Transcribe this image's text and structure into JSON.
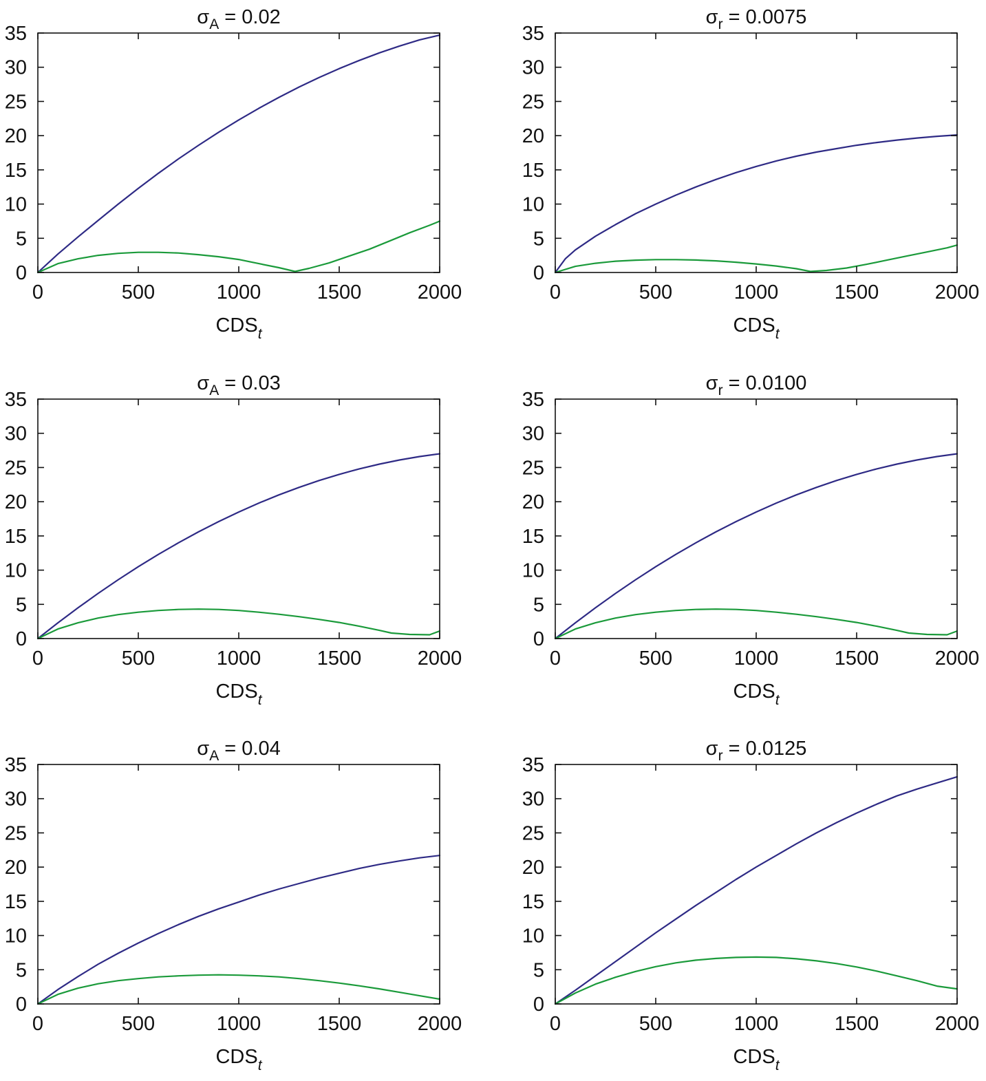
{
  "figure": {
    "panels": [
      {
        "title": {
          "symbol": "σ",
          "subscript": "A",
          "rest": " = 0.02"
        }
      },
      {
        "title": {
          "symbol": "σ",
          "subscript": "r",
          "rest": " = 0.0075"
        }
      },
      {
        "title": {
          "symbol": "σ",
          "subscript": "A",
          "rest": " = 0.03"
        }
      },
      {
        "title": {
          "symbol": "σ",
          "subscript": "r",
          "rest": " = 0.0100"
        }
      },
      {
        "title": {
          "symbol": "σ",
          "subscript": "A",
          "rest": " = 0.04"
        }
      },
      {
        "title": {
          "symbol": "σ",
          "subscript": "r",
          "rest": " = 0.0125"
        }
      }
    ],
    "xlabel": {
      "main": "CDS",
      "subscript": "t"
    }
  },
  "chart_data": [
    {
      "type": "line",
      "title": "σA = 0.02",
      "xlabel": "CDSt",
      "ylabel": "",
      "xlim": [
        0,
        2000
      ],
      "ylim": [
        0,
        35
      ],
      "xticks": [
        0,
        500,
        1000,
        1500,
        2000
      ],
      "yticks": [
        0,
        5,
        10,
        15,
        20,
        25,
        30,
        35
      ],
      "series": [
        {
          "name": "blue",
          "color": "#2e2a85",
          "x": [
            0,
            100,
            200,
            300,
            400,
            500,
            600,
            700,
            800,
            900,
            1000,
            1100,
            1200,
            1300,
            1400,
            1500,
            1600,
            1700,
            1800,
            1900,
            2000
          ],
          "y": [
            0,
            2.7,
            5.2,
            7.6,
            10.0,
            12.3,
            14.5,
            16.6,
            18.6,
            20.5,
            22.3,
            24.0,
            25.6,
            27.1,
            28.5,
            29.8,
            31.0,
            32.1,
            33.1,
            34.0,
            34.7
          ]
        },
        {
          "name": "green",
          "color": "#1a9a3a",
          "x": [
            0,
            100,
            200,
            300,
            400,
            500,
            600,
            700,
            800,
            900,
            1000,
            1100,
            1200,
            1280,
            1350,
            1450,
            1550,
            1650,
            1750,
            1850,
            1950,
            2000
          ],
          "y": [
            0,
            1.3,
            2.0,
            2.5,
            2.8,
            2.95,
            2.95,
            2.85,
            2.6,
            2.3,
            1.9,
            1.3,
            0.7,
            0.15,
            0.6,
            1.4,
            2.4,
            3.4,
            4.6,
            5.8,
            6.9,
            7.5
          ]
        }
      ]
    },
    {
      "type": "line",
      "title": "σr = 0.0075",
      "xlabel": "CDSt",
      "ylabel": "",
      "xlim": [
        0,
        2000
      ],
      "ylim": [
        0,
        35
      ],
      "xticks": [
        0,
        500,
        1000,
        1500,
        2000
      ],
      "yticks": [
        0,
        5,
        10,
        15,
        20,
        25,
        30,
        35
      ],
      "series": [
        {
          "name": "blue",
          "color": "#2e2a85",
          "x": [
            0,
            50,
            100,
            200,
            300,
            400,
            500,
            600,
            700,
            800,
            900,
            1000,
            1100,
            1200,
            1300,
            1400,
            1500,
            1600,
            1700,
            1800,
            1900,
            2000
          ],
          "y": [
            0,
            2.0,
            3.3,
            5.3,
            7.0,
            8.6,
            10.0,
            11.3,
            12.5,
            13.6,
            14.6,
            15.5,
            16.3,
            17.0,
            17.6,
            18.1,
            18.6,
            19.0,
            19.35,
            19.65,
            19.9,
            20.1
          ]
        },
        {
          "name": "green",
          "color": "#1a9a3a",
          "x": [
            0,
            100,
            200,
            300,
            400,
            500,
            600,
            700,
            800,
            900,
            1000,
            1100,
            1200,
            1270,
            1350,
            1450,
            1550,
            1650,
            1750,
            1850,
            1950,
            2000
          ],
          "y": [
            0,
            0.9,
            1.35,
            1.65,
            1.8,
            1.88,
            1.88,
            1.82,
            1.7,
            1.5,
            1.25,
            0.95,
            0.55,
            0.15,
            0.3,
            0.65,
            1.2,
            1.8,
            2.4,
            3.0,
            3.6,
            4.0
          ]
        }
      ]
    },
    {
      "type": "line",
      "title": "σA = 0.03",
      "xlabel": "CDSt",
      "ylabel": "",
      "xlim": [
        0,
        2000
      ],
      "ylim": [
        0,
        35
      ],
      "xticks": [
        0,
        500,
        1000,
        1500,
        2000
      ],
      "yticks": [
        0,
        5,
        10,
        15,
        20,
        25,
        30,
        35
      ],
      "series": [
        {
          "name": "blue",
          "color": "#2e2a85",
          "x": [
            0,
            100,
            200,
            300,
            400,
            500,
            600,
            700,
            800,
            900,
            1000,
            1100,
            1200,
            1300,
            1400,
            1500,
            1600,
            1700,
            1800,
            1900,
            2000
          ],
          "y": [
            0,
            2.3,
            4.5,
            6.6,
            8.6,
            10.5,
            12.3,
            14.0,
            15.6,
            17.1,
            18.5,
            19.8,
            21.0,
            22.1,
            23.1,
            24.0,
            24.8,
            25.5,
            26.1,
            26.6,
            27.0
          ]
        },
        {
          "name": "green",
          "color": "#1a9a3a",
          "x": [
            0,
            100,
            200,
            300,
            400,
            500,
            600,
            700,
            800,
            900,
            1000,
            1100,
            1200,
            1300,
            1400,
            1500,
            1600,
            1700,
            1760,
            1850,
            1950,
            2000
          ],
          "y": [
            0,
            1.4,
            2.3,
            3.0,
            3.5,
            3.85,
            4.1,
            4.25,
            4.3,
            4.25,
            4.1,
            3.85,
            3.55,
            3.2,
            2.8,
            2.35,
            1.8,
            1.2,
            0.8,
            0.6,
            0.55,
            1.1
          ]
        }
      ]
    },
    {
      "type": "line",
      "title": "σr = 0.0100",
      "xlabel": "CDSt",
      "ylabel": "",
      "xlim": [
        0,
        2000
      ],
      "ylim": [
        0,
        35
      ],
      "xticks": [
        0,
        500,
        1000,
        1500,
        2000
      ],
      "yticks": [
        0,
        5,
        10,
        15,
        20,
        25,
        30,
        35
      ],
      "series": [
        {
          "name": "blue",
          "color": "#2e2a85",
          "x": [
            0,
            100,
            200,
            300,
            400,
            500,
            600,
            700,
            800,
            900,
            1000,
            1100,
            1200,
            1300,
            1400,
            1500,
            1600,
            1700,
            1800,
            1900,
            2000
          ],
          "y": [
            0,
            2.3,
            4.5,
            6.6,
            8.6,
            10.5,
            12.3,
            14.0,
            15.6,
            17.1,
            18.5,
            19.8,
            21.0,
            22.1,
            23.1,
            24.0,
            24.8,
            25.5,
            26.1,
            26.6,
            27.0
          ]
        },
        {
          "name": "green",
          "color": "#1a9a3a",
          "x": [
            0,
            100,
            200,
            300,
            400,
            500,
            600,
            700,
            800,
            900,
            1000,
            1100,
            1200,
            1300,
            1400,
            1500,
            1600,
            1700,
            1760,
            1850,
            1950,
            2000
          ],
          "y": [
            0,
            1.4,
            2.3,
            3.0,
            3.5,
            3.85,
            4.1,
            4.25,
            4.3,
            4.25,
            4.1,
            3.85,
            3.55,
            3.2,
            2.8,
            2.35,
            1.8,
            1.2,
            0.8,
            0.6,
            0.55,
            1.1
          ]
        }
      ]
    },
    {
      "type": "line",
      "title": "σA = 0.04",
      "xlabel": "CDSt",
      "ylabel": "",
      "xlim": [
        0,
        2000
      ],
      "ylim": [
        0,
        35
      ],
      "xticks": [
        0,
        500,
        1000,
        1500,
        2000
      ],
      "yticks": [
        0,
        5,
        10,
        15,
        20,
        25,
        30,
        35
      ],
      "series": [
        {
          "name": "blue",
          "color": "#2e2a85",
          "x": [
            0,
            100,
            200,
            300,
            400,
            500,
            600,
            700,
            800,
            900,
            1000,
            1100,
            1200,
            1300,
            1400,
            1500,
            1600,
            1700,
            1800,
            1900,
            2000
          ],
          "y": [
            0,
            2.1,
            4.0,
            5.8,
            7.4,
            8.9,
            10.3,
            11.6,
            12.8,
            13.9,
            14.9,
            15.9,
            16.8,
            17.6,
            18.4,
            19.1,
            19.8,
            20.4,
            20.9,
            21.35,
            21.7
          ]
        },
        {
          "name": "green",
          "color": "#1a9a3a",
          "x": [
            0,
            100,
            200,
            300,
            400,
            500,
            600,
            700,
            800,
            900,
            1000,
            1100,
            1200,
            1300,
            1400,
            1500,
            1600,
            1700,
            1800,
            1900,
            2000
          ],
          "y": [
            0,
            1.4,
            2.3,
            2.95,
            3.4,
            3.7,
            3.95,
            4.1,
            4.2,
            4.25,
            4.2,
            4.1,
            3.95,
            3.7,
            3.4,
            3.05,
            2.65,
            2.2,
            1.7,
            1.2,
            0.7
          ]
        }
      ]
    },
    {
      "type": "line",
      "title": "σr = 0.0125",
      "xlabel": "CDSt",
      "ylabel": "",
      "xlim": [
        0,
        2000
      ],
      "ylim": [
        0,
        35
      ],
      "xticks": [
        0,
        500,
        1000,
        1500,
        2000
      ],
      "yticks": [
        0,
        5,
        10,
        15,
        20,
        25,
        30,
        35
      ],
      "series": [
        {
          "name": "blue",
          "color": "#2e2a85",
          "x": [
            0,
            100,
            200,
            300,
            400,
            500,
            600,
            700,
            800,
            900,
            1000,
            1100,
            1200,
            1300,
            1400,
            1500,
            1600,
            1700,
            1800,
            1900,
            2000
          ],
          "y": [
            0,
            2.0,
            4.1,
            6.2,
            8.3,
            10.4,
            12.4,
            14.4,
            16.3,
            18.2,
            20.0,
            21.7,
            23.4,
            25.0,
            26.5,
            27.9,
            29.2,
            30.4,
            31.4,
            32.3,
            33.2
          ]
        },
        {
          "name": "green",
          "color": "#1a9a3a",
          "x": [
            0,
            100,
            200,
            300,
            400,
            500,
            600,
            700,
            800,
            900,
            1000,
            1100,
            1200,
            1300,
            1400,
            1500,
            1600,
            1700,
            1800,
            1900,
            2000
          ],
          "y": [
            0,
            1.6,
            2.9,
            3.9,
            4.75,
            5.45,
            6.0,
            6.4,
            6.65,
            6.8,
            6.85,
            6.8,
            6.6,
            6.3,
            5.9,
            5.4,
            4.8,
            4.1,
            3.4,
            2.6,
            2.2
          ]
        }
      ]
    }
  ]
}
